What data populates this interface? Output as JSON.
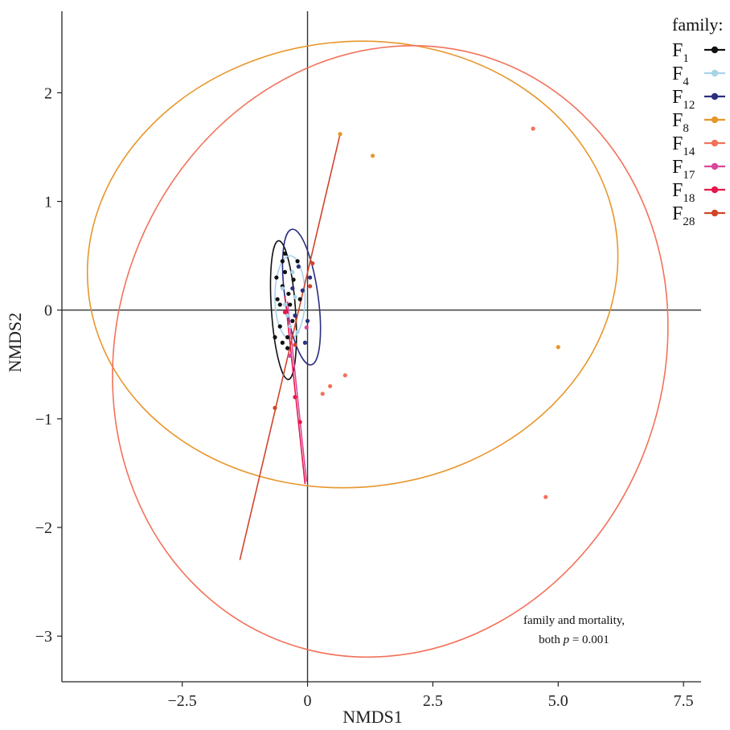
{
  "chart_data": {
    "type": "scatter",
    "xlabel": "NMDS1",
    "ylabel": "NMDS2",
    "xlim": [
      -4.9,
      7.85
    ],
    "ylim": [
      -3.42,
      2.75
    ],
    "x_ticks": [
      -2.5,
      0,
      2.5,
      5.0,
      7.5
    ],
    "x_tick_labels": [
      "−2.5",
      "0",
      "2.5",
      "5.0",
      "7.5"
    ],
    "y_ticks": [
      -3,
      -2,
      -1,
      0,
      1,
      2
    ],
    "y_tick_labels": [
      "−3",
      "−2",
      "−1",
      "0",
      "1",
      "2"
    ],
    "legend": {
      "title": "family:",
      "placement": "top-right",
      "entries": [
        {
          "label": "F",
          "sub": "1",
          "color": "#111111"
        },
        {
          "label": "F",
          "sub": "4",
          "color": "#a8d3e8"
        },
        {
          "label": "F",
          "sub": "12",
          "color": "#2b2f7e"
        },
        {
          "label": "F",
          "sub": "8",
          "color": "#e8962a"
        },
        {
          "label": "F",
          "sub": "14",
          "color": "#f2725a"
        },
        {
          "label": "F",
          "sub": "17",
          "color": "#d9489a"
        },
        {
          "label": "F",
          "sub": "18",
          "color": "#e8174a"
        },
        {
          "label": "F",
          "sub": "28",
          "color": "#d2432a"
        }
      ]
    },
    "annotation": {
      "line1": "family and mortality,",
      "line2_prefix": "both ",
      "line2_italic": "p",
      "line2_suffix": " = 0.001"
    },
    "series": [
      {
        "name": "F1",
        "color": "#111111",
        "points": [
          [
            -0.45,
            0.52
          ],
          [
            -0.6,
            0.1
          ],
          [
            -0.5,
            0.22
          ],
          [
            -0.55,
            -0.15
          ],
          [
            -0.4,
            -0.25
          ],
          [
            -0.35,
            0.05
          ],
          [
            -0.45,
            0.35
          ],
          [
            -0.62,
            0.3
          ],
          [
            -0.3,
            -0.1
          ],
          [
            -0.5,
            -0.3
          ],
          [
            -0.38,
            0.15
          ],
          [
            -0.2,
            0.45
          ],
          [
            -0.15,
            0.1
          ],
          [
            -0.55,
            0.05
          ],
          [
            -0.4,
            -0.35
          ],
          [
            -0.65,
            -0.25
          ],
          [
            -0.28,
            0.28
          ],
          [
            -0.5,
            0.45
          ]
        ]
      },
      {
        "name": "F4",
        "color": "#a8d3e8",
        "points": [
          [
            -0.3,
            0.35
          ],
          [
            -0.4,
            -0.05
          ],
          [
            -0.25,
            0.12
          ],
          [
            -0.5,
            0.2
          ],
          [
            -0.2,
            -0.2
          ],
          [
            -0.35,
            -0.15
          ],
          [
            -0.45,
            0.05
          ]
        ]
      },
      {
        "name": "F12",
        "color": "#2b2f7e",
        "points": [
          [
            -0.1,
            0.18
          ],
          [
            -0.25,
            -0.05
          ],
          [
            0.05,
            0.3
          ],
          [
            -0.05,
            -0.3
          ],
          [
            -0.18,
            0.4
          ],
          [
            0.0,
            -0.1
          ],
          [
            -0.3,
            0.2
          ]
        ]
      },
      {
        "name": "F8",
        "color": "#e8962a",
        "points": [
          [
            0.65,
            1.62
          ],
          [
            1.3,
            1.42
          ],
          [
            5.0,
            -0.34
          ]
        ]
      },
      {
        "name": "F14",
        "color": "#f2725a",
        "points": [
          [
            4.5,
            1.67
          ],
          [
            0.45,
            -0.7
          ],
          [
            0.75,
            -0.6
          ],
          [
            0.3,
            -0.77
          ],
          [
            4.75,
            -1.72
          ]
        ]
      },
      {
        "name": "F17",
        "color": "#d9489a",
        "points": [
          [
            -0.02,
            -0.16
          ],
          [
            -0.35,
            -0.42
          ]
        ]
      },
      {
        "name": "F18",
        "color": "#e8174a",
        "points": [
          [
            -0.45,
            -0.02
          ],
          [
            -0.25,
            -0.8
          ],
          [
            -0.15,
            -1.03
          ]
        ]
      },
      {
        "name": "F28",
        "color": "#d2432a",
        "points": [
          [
            -0.65,
            -0.9
          ],
          [
            0.05,
            0.22
          ],
          [
            0.1,
            0.43
          ],
          [
            -0.25,
            -0.32
          ]
        ]
      }
    ],
    "ellipses": [
      {
        "series": "F1",
        "color": "#111111",
        "cx": -0.48,
        "cy": 0.0,
        "rx": 0.24,
        "ry": 0.64,
        "angle": -4
      },
      {
        "series": "F4",
        "color": "#a8d3e8",
        "cx": -0.35,
        "cy": 0.12,
        "rx": 0.3,
        "ry": 0.38,
        "angle": 0
      },
      {
        "series": "F12",
        "color": "#2b2f7e",
        "cx": -0.12,
        "cy": 0.12,
        "rx": 0.33,
        "ry": 0.63,
        "angle": -8
      },
      {
        "series": "F8",
        "color": "#e8962a",
        "cx": 0.9,
        "cy": 0.42,
        "rx": 5.3,
        "ry": 2.05,
        "angle": -6
      },
      {
        "series": "F14",
        "color": "#f2725a",
        "cx": 1.65,
        "cy": -0.38,
        "rx": 5.45,
        "ry": 2.85,
        "angle": 20
      }
    ],
    "lines": [
      {
        "series": "F18",
        "color": "#e8174a",
        "from": [
          -0.45,
          0.13
        ],
        "to": [
          -0.05,
          -1.6
        ]
      },
      {
        "series": "F17",
        "color": "#d9489a",
        "from": [
          -0.4,
          0.08
        ],
        "to": [
          -0.02,
          -1.58
        ]
      },
      {
        "series": "F28",
        "color": "#d2432a",
        "from": [
          -1.35,
          -2.3
        ],
        "to": [
          0.65,
          1.62
        ]
      }
    ]
  }
}
